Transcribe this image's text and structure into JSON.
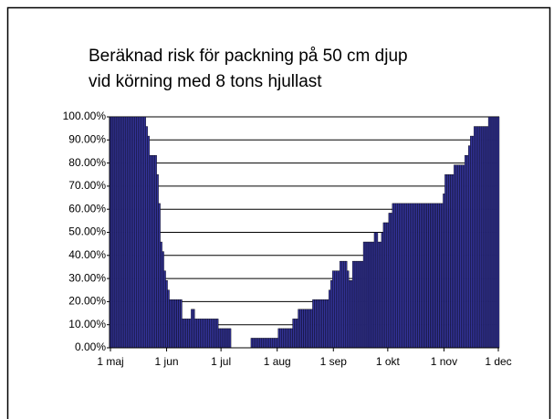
{
  "chart_data": {
    "type": "bar",
    "title": [
      "Beräknad risk för packning på 50 cm djup",
      "vid körning med 8 tons hjullast"
    ],
    "categories": [
      "1 maj",
      null,
      null,
      null,
      null,
      null,
      null,
      null,
      null,
      null,
      null,
      null,
      null,
      null,
      null,
      null,
      null,
      null,
      null,
      null,
      null,
      null,
      null,
      null,
      null,
      null,
      null,
      null,
      null,
      null,
      null,
      "1 jun",
      null,
      null,
      null,
      null,
      null,
      null,
      null,
      null,
      null,
      null,
      null,
      null,
      null,
      null,
      null,
      null,
      null,
      null,
      null,
      null,
      null,
      null,
      null,
      null,
      null,
      null,
      null,
      null,
      null,
      "1 jul",
      null,
      null,
      null,
      null,
      null,
      null,
      null,
      null,
      null,
      null,
      null,
      null,
      null,
      null,
      null,
      null,
      null,
      null,
      null,
      null,
      null,
      null,
      null,
      null,
      null,
      null,
      null,
      null,
      null,
      null,
      "1 aug",
      null,
      null,
      null,
      null,
      null,
      null,
      null,
      null,
      null,
      null,
      null,
      null,
      null,
      null,
      null,
      null,
      null,
      null,
      null,
      null,
      null,
      null,
      null,
      null,
      null,
      null,
      null,
      null,
      null,
      null,
      "1 sep",
      null,
      null,
      null,
      null,
      null,
      null,
      null,
      null,
      null,
      null,
      null,
      null,
      null,
      null,
      null,
      null,
      null,
      null,
      null,
      null,
      null,
      null,
      null,
      null,
      null,
      null,
      null,
      null,
      null,
      "1 okt",
      null,
      null,
      null,
      null,
      null,
      null,
      null,
      null,
      null,
      null,
      null,
      null,
      null,
      null,
      null,
      null,
      null,
      null,
      null,
      null,
      null,
      null,
      null,
      null,
      null,
      null,
      null,
      null,
      null,
      null,
      "1 nov",
      null,
      null,
      null,
      null,
      null,
      null,
      null,
      null,
      null,
      null,
      null,
      null,
      null,
      null,
      null,
      null,
      null,
      null,
      null,
      null,
      null,
      null,
      null,
      null,
      null,
      null,
      null,
      null,
      null,
      "1 dec"
    ],
    "values": [
      100,
      100,
      100,
      100,
      100,
      100,
      100,
      100,
      100,
      100,
      100,
      100,
      100,
      100,
      100,
      100,
      100,
      100,
      100,
      100,
      95.83,
      91.67,
      83.33,
      83.33,
      83.33,
      83.33,
      75,
      62.5,
      45.83,
      41.67,
      33.33,
      29.17,
      25,
      20.83,
      20.83,
      20.83,
      20.83,
      20.83,
      20.83,
      20.83,
      12.5,
      12.5,
      12.5,
      12.5,
      12.5,
      16.67,
      16.67,
      12.5,
      12.5,
      12.5,
      12.5,
      12.5,
      12.5,
      12.5,
      12.5,
      12.5,
      12.5,
      12.5,
      12.5,
      12.5,
      8.33,
      8.33,
      8.33,
      8.33,
      8.33,
      8.33,
      8.33,
      0,
      0,
      0,
      0,
      0,
      0,
      0,
      0,
      0,
      0,
      0,
      4.17,
      4.17,
      4.17,
      4.17,
      4.17,
      4.17,
      4.17,
      4.17,
      4.17,
      4.17,
      4.17,
      4.17,
      4.17,
      4.17,
      4.17,
      8.33,
      8.33,
      8.33,
      8.33,
      8.33,
      8.33,
      8.33,
      8.33,
      12.5,
      12.5,
      12.5,
      16.67,
      16.67,
      16.67,
      16.67,
      16.67,
      16.67,
      16.67,
      16.67,
      20.83,
      20.83,
      20.83,
      20.83,
      20.83,
      20.83,
      20.83,
      20.83,
      20.83,
      25,
      29.17,
      33.33,
      33.33,
      33.33,
      33.33,
      37.5,
      37.5,
      37.5,
      37.5,
      33.33,
      29.17,
      29.17,
      37.5,
      37.5,
      37.5,
      37.5,
      37.5,
      37.5,
      45.83,
      45.83,
      45.83,
      45.83,
      45.83,
      45.83,
      50,
      50,
      45.83,
      45.83,
      50,
      54.17,
      54.17,
      54.17,
      58.33,
      58.33,
      62.5,
      62.5,
      62.5,
      62.5,
      62.5,
      62.5,
      62.5,
      62.5,
      62.5,
      62.5,
      62.5,
      62.5,
      62.5,
      62.5,
      62.5,
      62.5,
      62.5,
      62.5,
      62.5,
      62.5,
      62.5,
      62.5,
      62.5,
      62.5,
      62.5,
      62.5,
      62.5,
      62.5,
      66.67,
      75,
      75,
      75,
      75,
      75,
      79.17,
      79.17,
      79.17,
      79.17,
      79.17,
      79.17,
      83.33,
      83.33,
      87.5,
      91.67,
      91.67,
      95.83,
      95.83,
      95.83,
      95.83,
      95.83,
      95.83,
      95.83,
      95.83,
      100,
      100,
      100,
      100,
      100,
      100
    ],
    "color": "#333399",
    "ylim": [
      0,
      100
    ],
    "yticks": [
      {
        "value": 0,
        "label": "0.00%"
      },
      {
        "value": 10,
        "label": "10.00%"
      },
      {
        "value": 20,
        "label": "20.00%"
      },
      {
        "value": 30,
        "label": "30.00%"
      },
      {
        "value": 40,
        "label": "40.00%"
      },
      {
        "value": 50,
        "label": "50.00%"
      },
      {
        "value": 60,
        "label": "60.00%"
      },
      {
        "value": 70,
        "label": "70.00%"
      },
      {
        "value": 80,
        "label": "80.00%"
      },
      {
        "value": 90,
        "label": "90.00%"
      },
      {
        "value": 100,
        "label": "100.00%"
      }
    ],
    "grid": true
  }
}
